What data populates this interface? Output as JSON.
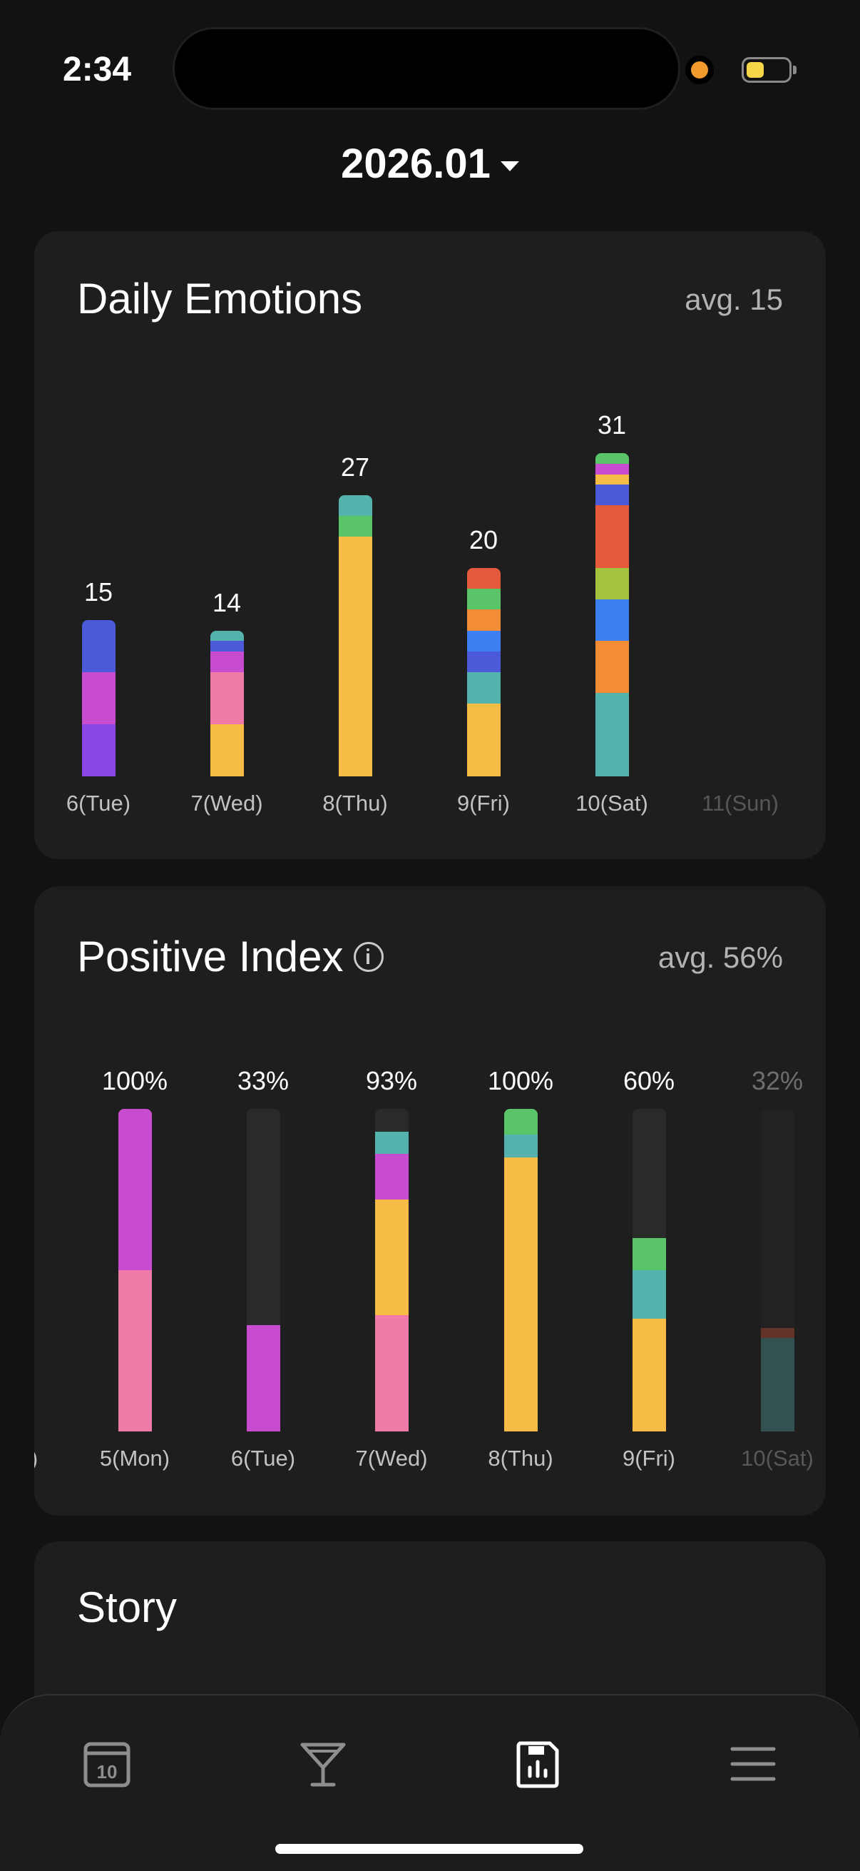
{
  "status": {
    "time": "2:34"
  },
  "month": {
    "label": "2026.01"
  },
  "colors": {
    "violet": "#8a47e6",
    "blue": "#4a5ad8",
    "magenta": "#c84cd0",
    "pink": "#f07aa8",
    "yellow": "#f5bd45",
    "teal": "#55b3ad",
    "green": "#59c468",
    "orange": "#f28d36",
    "red": "#e55a3c",
    "bright_blue": "#3b7ff0",
    "lime": "#a4c23e",
    "track": "#2a2a2a"
  },
  "daily": {
    "title": "Daily Emotions",
    "avg": "avg. 15",
    "chart_data": {
      "type": "bar",
      "stacked": true,
      "categories": [
        "6(Tue)",
        "7(Wed)",
        "8(Thu)",
        "9(Fri)",
        "10(Sat)",
        "11(Sun)"
      ],
      "values": [
        15,
        14,
        27,
        20,
        31,
        0
      ],
      "value_labels": [
        "15",
        "14",
        "27",
        "20",
        "31",
        ""
      ],
      "segments": [
        [
          {
            "color": "violet",
            "value": 5
          },
          {
            "color": "magenta",
            "value": 5
          },
          {
            "color": "blue",
            "value": 5
          }
        ],
        [
          {
            "color": "yellow",
            "value": 5
          },
          {
            "color": "pink",
            "value": 5
          },
          {
            "color": "magenta",
            "value": 2
          },
          {
            "color": "blue",
            "value": 1
          },
          {
            "color": "teal",
            "value": 1
          }
        ],
        [
          {
            "color": "yellow",
            "value": 23
          },
          {
            "color": "green",
            "value": 2
          },
          {
            "color": "teal",
            "value": 2
          }
        ],
        [
          {
            "color": "yellow",
            "value": 7
          },
          {
            "color": "teal",
            "value": 3
          },
          {
            "color": "blue",
            "value": 2
          },
          {
            "color": "bright_blue",
            "value": 2
          },
          {
            "color": "orange",
            "value": 2
          },
          {
            "color": "green",
            "value": 2
          },
          {
            "color": "red",
            "value": 2
          }
        ],
        [
          {
            "color": "teal",
            "value": 8
          },
          {
            "color": "orange",
            "value": 5
          },
          {
            "color": "bright_blue",
            "value": 4
          },
          {
            "color": "lime",
            "value": 3
          },
          {
            "color": "red",
            "value": 6
          },
          {
            "color": "blue",
            "value": 2
          },
          {
            "color": "yellow",
            "value": 1
          },
          {
            "color": "magenta",
            "value": 1
          },
          {
            "color": "green",
            "value": 1
          }
        ],
        []
      ],
      "faded": [
        false,
        false,
        false,
        false,
        false,
        true
      ]
    }
  },
  "positive": {
    "title": "Positive Index",
    "avg": "avg. 56%",
    "chart_data": {
      "type": "bar",
      "stacked": true,
      "categories": [
        ")",
        "5(Mon)",
        "6(Tue)",
        "7(Wed)",
        "8(Thu)",
        "9(Fri)",
        "10(Sat)"
      ],
      "values": [
        null,
        100,
        33,
        93,
        100,
        60,
        32
      ],
      "value_labels": [
        "",
        "100%",
        "33%",
        "93%",
        "100%",
        "60%",
        "32%"
      ],
      "ylim": [
        0,
        100
      ],
      "segments": [
        [],
        [
          {
            "color": "pink",
            "value": 50
          },
          {
            "color": "magenta",
            "value": 50
          }
        ],
        [
          {
            "color": "magenta",
            "value": 33
          }
        ],
        [
          {
            "color": "pink",
            "value": 36
          },
          {
            "color": "yellow",
            "value": 36
          },
          {
            "color": "magenta",
            "value": 14
          },
          {
            "color": "teal",
            "value": 7
          }
        ],
        [
          {
            "color": "yellow",
            "value": 85
          },
          {
            "color": "teal",
            "value": 7
          },
          {
            "color": "green",
            "value": 8
          }
        ],
        [
          {
            "color": "yellow",
            "value": 35
          },
          {
            "color": "teal",
            "value": 15
          },
          {
            "color": "green",
            "value": 10
          }
        ],
        [
          {
            "color": "teal",
            "value": 29
          },
          {
            "color": "red",
            "value": 3
          }
        ]
      ],
      "faded": [
        false,
        false,
        false,
        false,
        false,
        false,
        true
      ]
    }
  },
  "story": {
    "title": "Story"
  },
  "tabs": [
    {
      "name": "calendar",
      "icon": "calendar-icon",
      "day": "10",
      "active": false
    },
    {
      "name": "cocktail",
      "icon": "cocktail-icon",
      "active": false
    },
    {
      "name": "stats",
      "icon": "stats-icon",
      "active": true
    },
    {
      "name": "menu",
      "icon": "menu-icon",
      "active": false
    }
  ]
}
